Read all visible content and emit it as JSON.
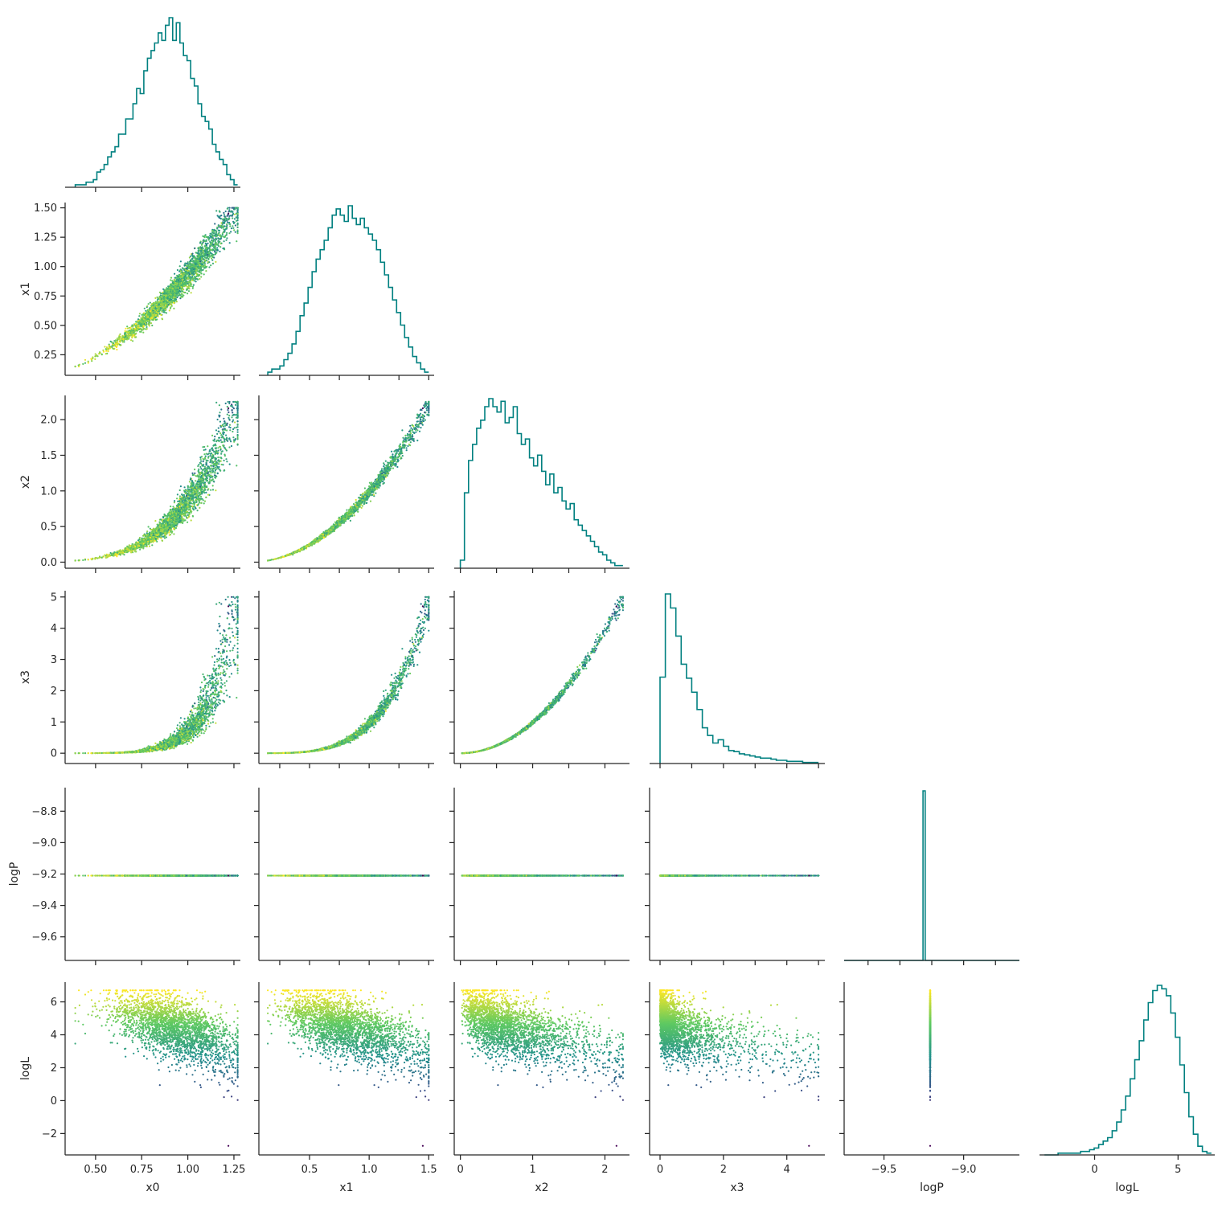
{
  "chart_data": {
    "type": "scatter",
    "layout": "corner-plot",
    "title": "",
    "parameters": [
      "x0",
      "x1",
      "x2",
      "x3",
      "logP",
      "logL"
    ],
    "ranges": {
      "x0": [
        0.335,
        1.285
      ],
      "x1": [
        0.075,
        1.545
      ],
      "x2": [
        -0.085,
        2.34
      ],
      "x3": [
        -0.33,
        5.2
      ],
      "logP": [
        -9.75,
        -8.65
      ],
      "logL": [
        -3.3,
        7.2
      ]
    },
    "ticks": {
      "x0": [
        "0.50",
        "0.75",
        "1.00",
        "1.25"
      ],
      "x1": [
        "0.25",
        "0.50",
        "0.75",
        "1.00",
        "1.25",
        "1.50"
      ],
      "x1_bottom": [
        "0.5",
        "1.0",
        "1.5"
      ],
      "x2": [
        "0.0",
        "0.5",
        "1.0",
        "1.5",
        "2.0"
      ],
      "x2_bottom": [
        "0",
        "1",
        "2"
      ],
      "x3": [
        "0",
        "1",
        "2",
        "3",
        "4",
        "5"
      ],
      "x3_bottom": [
        "0",
        "2",
        "4"
      ],
      "logP": [
        "−9.6",
        "−9.4",
        "−9.2",
        "−9.0",
        "−8.8"
      ],
      "logP_bottom": [
        "−9.5",
        "−9.0"
      ],
      "logL": [
        "−2",
        "0",
        "2",
        "4",
        "6"
      ],
      "logL_bottom": [
        "0",
        "5"
      ]
    },
    "tick_values": {
      "x0": [
        0.5,
        0.75,
        1.0,
        1.25
      ],
      "x1": [
        0.25,
        0.5,
        0.75,
        1.0,
        1.25,
        1.5
      ],
      "x1_bottom": [
        0.5,
        1.0,
        1.5
      ],
      "x2": [
        0.0,
        0.5,
        1.0,
        1.5,
        2.0
      ],
      "x2_bottom": [
        0,
        1,
        2
      ],
      "x3": [
        0,
        1,
        2,
        3,
        4,
        5
      ],
      "x3_bottom": [
        0,
        2,
        4
      ],
      "logP": [
        -9.6,
        -9.4,
        -9.2,
        -9.0,
        -8.8
      ],
      "logP_bottom": [
        -9.5,
        -9.0
      ],
      "logL": [
        -2,
        0,
        2,
        4,
        6
      ],
      "logL_bottom": [
        0,
        5
      ]
    },
    "logP_constant": -9.21,
    "histogram_color": "#008080",
    "colormap": "viridis",
    "color_by": "logL",
    "histograms": {
      "x0": [
        1,
        1,
        1,
        2,
        2,
        3,
        6,
        7,
        9,
        12,
        14,
        16,
        21,
        21,
        27,
        27,
        33,
        39,
        37,
        46,
        51,
        54,
        57,
        61,
        58,
        64,
        67,
        58,
        65,
        57,
        52,
        50,
        43,
        40,
        33,
        28,
        26,
        23,
        17,
        14,
        11,
        9,
        5,
        3,
        1
      ],
      "x1": [
        1,
        2,
        2,
        3,
        5,
        7,
        10,
        14,
        19,
        23,
        28,
        33,
        37,
        40,
        43,
        47,
        51,
        53,
        51,
        49,
        54,
        50,
        48,
        50,
        47,
        45,
        43,
        40,
        36,
        32,
        28,
        24,
        20,
        16,
        12,
        9,
        6,
        4,
        2,
        1
      ],
      "x2": [
        3,
        28,
        40,
        46,
        52,
        55,
        60,
        63,
        60,
        58,
        62,
        54,
        56,
        60,
        50,
        46,
        48,
        41,
        38,
        42,
        36,
        31,
        35,
        28,
        30,
        25,
        22,
        24,
        18,
        16,
        14,
        12,
        10,
        8,
        6,
        5,
        3,
        2,
        1,
        1
      ],
      "x3": [
        80,
        157,
        144,
        118,
        92,
        79,
        66,
        50,
        33,
        26,
        19,
        22,
        16,
        12,
        11,
        9,
        8,
        7,
        6,
        5,
        5,
        4,
        3,
        3,
        2,
        2,
        2,
        1,
        1,
        1
      ],
      "logP": [
        0,
        0,
        0,
        0,
        0,
        0,
        0,
        0,
        0,
        0,
        0,
        0,
        0,
        0,
        0,
        0,
        0,
        0,
        0,
        0,
        0,
        0,
        0,
        0,
        0,
        0,
        0,
        0,
        0,
        0,
        0,
        0,
        0,
        0,
        0,
        0,
        1,
        0,
        0,
        0,
        0,
        0,
        0,
        0,
        0,
        0,
        0,
        0,
        0,
        0,
        0,
        0,
        0,
        0,
        0,
        0,
        0,
        0,
        0,
        0,
        0,
        0,
        0,
        0,
        0,
        0,
        0,
        0,
        0,
        0,
        0,
        0,
        0,
        0,
        0,
        0,
        0,
        0,
        0,
        0
      ],
      "logL": [
        0,
        0,
        0,
        1,
        1,
        1,
        1,
        1,
        2,
        2,
        3,
        4,
        6,
        8,
        10,
        14,
        19,
        26,
        34,
        44,
        55,
        66,
        78,
        88,
        95,
        98,
        96,
        92,
        82,
        68,
        52,
        36,
        22,
        12,
        5,
        2,
        1
      ]
    }
  }
}
